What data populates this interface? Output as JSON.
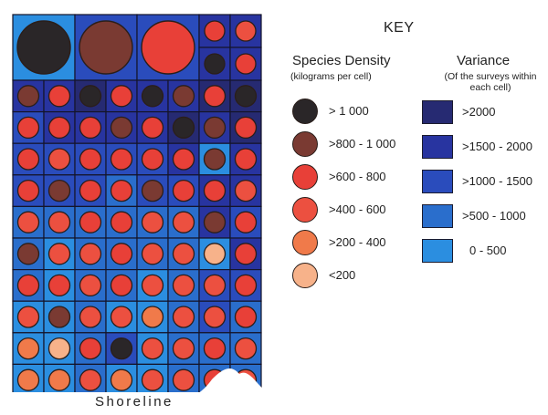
{
  "key": {
    "title": "KEY",
    "density": {
      "title": "Species Density",
      "subtitle": "(kilograms per cell)",
      "items": [
        {
          "label": "> 1 000",
          "color": "#2a2628"
        },
        {
          "label": ">800 - 1 000",
          "color": "#7a3a32"
        },
        {
          "label": ">600 - 800",
          "color": "#e84038"
        },
        {
          "label": ">400 - 600",
          "color": "#ec5040"
        },
        {
          "label": ">200 - 400",
          "color": "#f07a4a"
        },
        {
          "label": "<200",
          "color": "#f7b28a"
        }
      ]
    },
    "variance": {
      "title": "Variance",
      "subtitle_line1": "(Of the surveys within",
      "subtitle_line2": "each cell)",
      "items": [
        {
          "label": ">2000",
          "color": "#262a72"
        },
        {
          "label": ">1500 - 2000",
          "color": "#2834a0"
        },
        {
          "label": ">1000 - 1500",
          "color": "#2a4cbc"
        },
        {
          "label": ">500 - 1000",
          "color": "#2a6ecc"
        },
        {
          "label": "0 - 500",
          "color": "#2b8ee0"
        }
      ]
    }
  },
  "shoreline_label": "Shoreline",
  "map": {
    "variance_colors": [
      "#2b8ee0",
      "#2a6ecc",
      "#2a4cbc",
      "#2834a0",
      "#262a72"
    ],
    "density_colors": [
      "#f7b28a",
      "#f07a4a",
      "#ec5040",
      "#e84038",
      "#7a3a32",
      "#2a2628"
    ],
    "big_cells": [
      {
        "density": 5,
        "variance": 0
      },
      {
        "density": 4,
        "variance": 2
      },
      {
        "density": 3,
        "variance": 2
      }
    ],
    "top_right_cells": [
      [
        {
          "density": 3,
          "variance": 3
        },
        {
          "density": 2,
          "variance": 3
        }
      ],
      [
        {
          "density": 5,
          "variance": 3
        },
        {
          "density": 3,
          "variance": 3
        }
      ]
    ],
    "rows": [
      [
        [
          4,
          3
        ],
        [
          3,
          3
        ],
        [
          5,
          4
        ],
        [
          3,
          3
        ],
        [
          5,
          3
        ],
        [
          4,
          3
        ],
        [
          3,
          4
        ],
        [
          5,
          4
        ]
      ],
      [
        [
          3,
          2
        ],
        [
          3,
          3
        ],
        [
          3,
          3
        ],
        [
          4,
          3
        ],
        [
          3,
          3
        ],
        [
          5,
          4
        ],
        [
          4,
          3
        ],
        [
          3,
          4
        ]
      ],
      [
        [
          3,
          2
        ],
        [
          2,
          2
        ],
        [
          3,
          2
        ],
        [
          3,
          2
        ],
        [
          3,
          2
        ],
        [
          3,
          3
        ],
        [
          4,
          0
        ],
        [
          3,
          3
        ]
      ],
      [
        [
          3,
          2
        ],
        [
          4,
          2
        ],
        [
          3,
          2
        ],
        [
          3,
          1
        ],
        [
          4,
          2
        ],
        [
          3,
          2
        ],
        [
          3,
          3
        ],
        [
          2,
          3
        ]
      ],
      [
        [
          2,
          1
        ],
        [
          2,
          1
        ],
        [
          3,
          1
        ],
        [
          3,
          1
        ],
        [
          2,
          1
        ],
        [
          2,
          1
        ],
        [
          4,
          3
        ],
        [
          3,
          2
        ]
      ],
      [
        [
          4,
          1
        ],
        [
          2,
          0
        ],
        [
          2,
          1
        ],
        [
          3,
          1
        ],
        [
          2,
          1
        ],
        [
          2,
          1
        ],
        [
          0,
          0
        ],
        [
          3,
          3
        ]
      ],
      [
        [
          3,
          1
        ],
        [
          3,
          0
        ],
        [
          2,
          1
        ],
        [
          3,
          1
        ],
        [
          2,
          0
        ],
        [
          2,
          1
        ],
        [
          2,
          2
        ],
        [
          3,
          2
        ]
      ],
      [
        [
          2,
          0
        ],
        [
          4,
          0
        ],
        [
          2,
          1
        ],
        [
          2,
          0
        ],
        [
          1,
          0
        ],
        [
          2,
          1
        ],
        [
          2,
          2
        ],
        [
          3,
          1
        ]
      ],
      [
        [
          1,
          0
        ],
        [
          0,
          0
        ],
        [
          3,
          1
        ],
        [
          5,
          2
        ],
        [
          2,
          0
        ],
        [
          2,
          1
        ],
        [
          3,
          1
        ],
        [
          2,
          1
        ]
      ],
      [
        [
          1,
          0
        ],
        [
          1,
          0
        ],
        [
          2,
          1
        ],
        [
          1,
          0
        ],
        [
          2,
          0
        ],
        [
          2,
          1
        ],
        [
          3,
          1
        ],
        [
          2,
          1
        ]
      ]
    ]
  }
}
